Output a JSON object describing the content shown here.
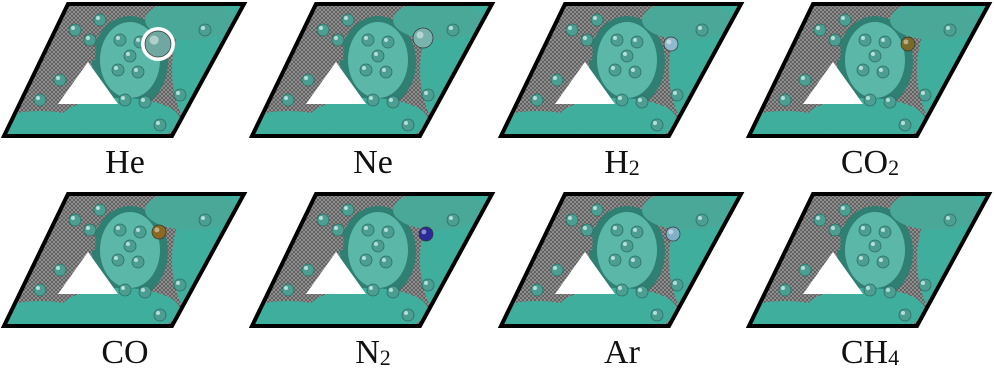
{
  "panels": [
    {
      "formula": "He",
      "base": "He",
      "sub": "",
      "adsorbate": {
        "color": "#6fa8a0",
        "size": "large",
        "highlight": true
      }
    },
    {
      "formula": "Ne",
      "base": "Ne",
      "sub": "",
      "adsorbate": {
        "color": "#7ab3ad",
        "size": "medium",
        "highlight": false
      }
    },
    {
      "formula": "H2",
      "base": "H",
      "sub": "2",
      "adsorbate": {
        "color": "#8fb9cc",
        "size": "small",
        "highlight": false
      }
    },
    {
      "formula": "CO2",
      "base": "CO",
      "sub": "2",
      "adsorbate": {
        "color": "#7a6a2a",
        "size": "small",
        "highlight": false
      }
    },
    {
      "formula": "CO",
      "base": "CO",
      "sub": "",
      "adsorbate": {
        "color": "#8a6a20",
        "size": "small",
        "highlight": false
      }
    },
    {
      "formula": "N2",
      "base": "N",
      "sub": "2",
      "adsorbate": {
        "color": "#2a2a9a",
        "size": "small",
        "highlight": false
      }
    },
    {
      "formula": "Ar",
      "base": "Ar",
      "sub": "",
      "adsorbate": {
        "color": "#7fb0c8",
        "size": "small",
        "highlight": false
      }
    },
    {
      "formula": "CH4",
      "base": "CH",
      "sub": "4",
      "adsorbate": null
    }
  ],
  "colors": {
    "framework_teal": "#3fae9c",
    "framework_dark": "#2f7f73",
    "mesh_gray": "#5a5a5a",
    "atom": "#4d9e92",
    "pore": "#ffffff",
    "frame_border": "#000000"
  }
}
